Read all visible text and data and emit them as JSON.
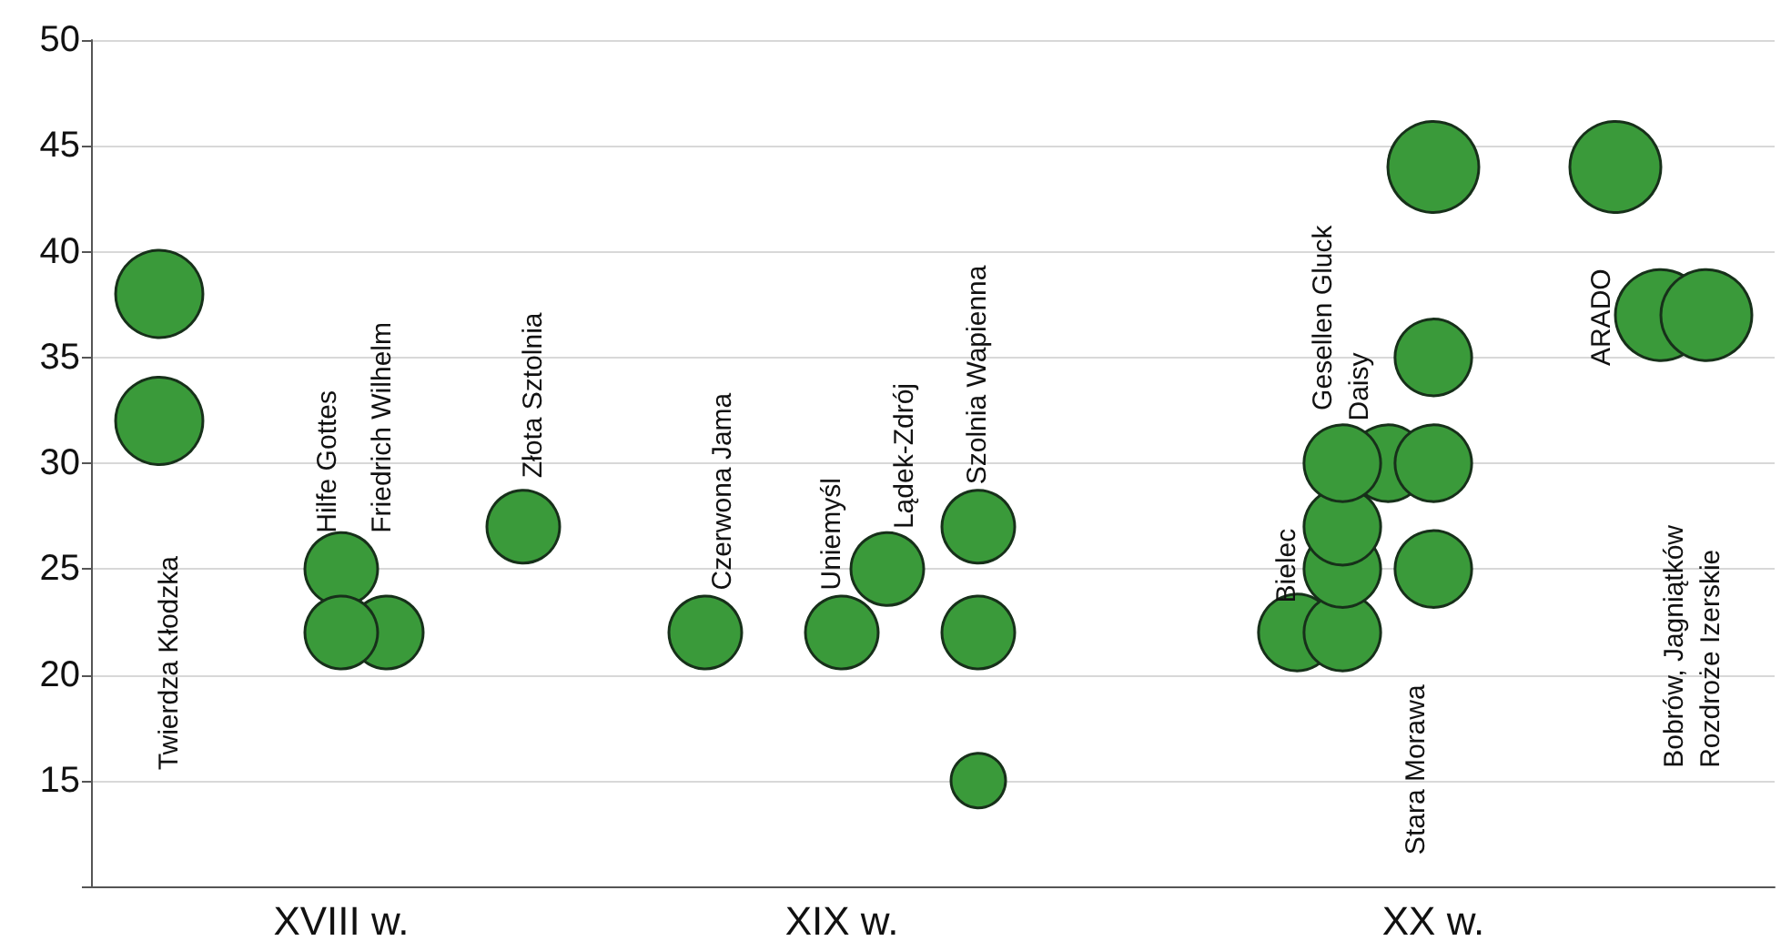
{
  "chart_data": {
    "type": "bubble",
    "categories": [
      null,
      null,
      null,
      null,
      null,
      "XVIII w.",
      null,
      null,
      null,
      null,
      null,
      null,
      null,
      null,
      null,
      null,
      "XIX w.",
      null,
      null,
      null,
      null,
      null,
      null,
      null,
      null,
      null,
      null,
      null,
      null,
      "XX w.",
      null,
      null,
      null,
      null,
      null,
      null,
      null
    ],
    "series": [
      {
        "color": "#3a9a3a",
        "values": [
          null,
          38,
          null,
          null,
          null,
          25,
          22,
          null,
          null,
          27,
          null,
          null,
          null,
          22,
          null,
          null,
          22,
          25,
          null,
          27,
          null,
          null,
          null,
          null,
          null,
          null,
          22,
          22,
          30,
          30,
          null,
          null,
          null,
          44,
          37,
          37,
          null
        ],
        "sizes": [
          null,
          0.92,
          null,
          null,
          null,
          0.64,
          0.64,
          null,
          null,
          0.64,
          null,
          null,
          null,
          0.64,
          null,
          null,
          0.64,
          0.64,
          null,
          0.64,
          null,
          null,
          null,
          null,
          null,
          null,
          0.71,
          0.71,
          0.71,
          0.71,
          null,
          null,
          null,
          1,
          1,
          1,
          null
        ]
      },
      {
        "color": "#3a9a3a",
        "values": [
          null,
          32,
          null,
          null,
          null,
          22,
          null,
          null,
          null,
          null,
          null,
          null,
          null,
          null,
          null,
          null,
          null,
          null,
          null,
          22,
          null,
          null,
          null,
          null,
          null,
          null,
          null,
          25,
          null,
          35,
          null,
          null,
          null,
          null,
          null,
          null,
          null
        ],
        "sizes": [
          null,
          0.92,
          null,
          null,
          null,
          0.64,
          null,
          null,
          null,
          null,
          null,
          null,
          null,
          null,
          null,
          null,
          null,
          null,
          null,
          0.64,
          null,
          null,
          null,
          null,
          null,
          null,
          null,
          0.71,
          null,
          0.71,
          null,
          null,
          null,
          null,
          null,
          null,
          null
        ]
      },
      {
        "color": "#3a9a3a",
        "values": [
          null,
          null,
          null,
          null,
          null,
          null,
          null,
          null,
          null,
          null,
          null,
          null,
          null,
          null,
          null,
          null,
          null,
          null,
          null,
          15,
          null,
          null,
          null,
          null,
          null,
          null,
          null,
          27,
          null,
          25,
          null,
          null,
          null,
          null,
          null,
          null,
          null
        ],
        "sizes": [
          null,
          null,
          null,
          null,
          null,
          null,
          null,
          null,
          null,
          null,
          null,
          null,
          null,
          null,
          null,
          null,
          null,
          null,
          null,
          0.36,
          null,
          null,
          null,
          null,
          null,
          null,
          null,
          0.71,
          null,
          0.71,
          null,
          null,
          null,
          null,
          null,
          null,
          null
        ]
      },
      {
        "color": "#3a9a3a",
        "values": [
          null,
          null,
          null,
          null,
          null,
          null,
          null,
          null,
          null,
          null,
          null,
          null,
          null,
          null,
          null,
          null,
          null,
          null,
          null,
          null,
          null,
          null,
          null,
          null,
          null,
          null,
          null,
          30,
          null,
          44,
          null,
          null,
          null,
          null,
          null,
          null,
          null
        ],
        "sizes": [
          null,
          null,
          null,
          null,
          null,
          null,
          null,
          null,
          null,
          null,
          null,
          null,
          null,
          null,
          null,
          null,
          null,
          null,
          null,
          null,
          null,
          null,
          null,
          null,
          null,
          null,
          null,
          0.71,
          null,
          1,
          null,
          null,
          null,
          null,
          null,
          null,
          null
        ]
      }
    ],
    "ylim": [
      10,
      50
    ],
    "yticks": [
      {
        "value": 10,
        "label": null
      },
      15,
      20,
      25,
      30,
      35,
      40,
      45,
      50
    ],
    "grid": "y",
    "marker": "circle",
    "annotations": [
      "Twierdza Kłodzka",
      "Hilfe Gottes",
      "Friedrich Wilhelm",
      "Złota Sztolnia",
      "Czerwona Jama",
      "Uniemyśl",
      "Lądek-Zdrój",
      "Szolnia Wapienna",
      "Bielec",
      "Gesellen Gluck",
      "Daisy",
      "Stara Morawa",
      "ARADO",
      "Bobrów, Jagniątków",
      "Rozdroże Izerskie"
    ]
  }
}
